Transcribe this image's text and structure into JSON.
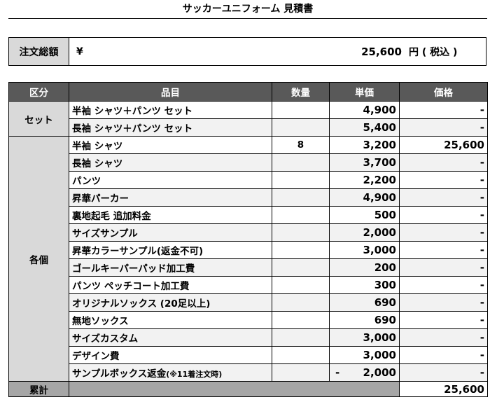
{
  "title": "サッカーユニフォーム 見積書",
  "total": {
    "label": "注文総額",
    "currency": "¥",
    "amount": "25,600",
    "unit": "円 ( 税込 )"
  },
  "table": {
    "headers": [
      "区分",
      "品目",
      "数量",
      "単価",
      "価格"
    ],
    "groups": [
      {
        "category": "セット",
        "rows": [
          {
            "item": "半袖 シャツ＋パンツ セット",
            "qty": "",
            "unit": "4,900",
            "amount": "-"
          },
          {
            "item": "長袖 シャツ＋パンツ セット",
            "qty": "",
            "unit": "5,400",
            "amount": "-"
          }
        ]
      },
      {
        "category": "各個",
        "rows": [
          {
            "item": "半袖 シャツ",
            "qty": "8",
            "unit": "3,200",
            "amount": "25,600"
          },
          {
            "item": "長袖 シャツ",
            "qty": "",
            "unit": "3,700",
            "amount": "-"
          },
          {
            "item": "パンツ",
            "qty": "",
            "unit": "2,200",
            "amount": "-"
          },
          {
            "item": "昇華パーカー",
            "qty": "",
            "unit": "4,900",
            "amount": "-"
          },
          {
            "item": "裏地起毛 追加料金",
            "qty": "",
            "unit": "500",
            "amount": "-"
          },
          {
            "item": "サイズサンプル",
            "qty": "",
            "unit": "2,000",
            "amount": "-"
          },
          {
            "item": "昇華カラーサンプル(返金不可)",
            "qty": "",
            "unit": "3,000",
            "amount": "-"
          },
          {
            "item": "ゴールキーパーパッド加工費",
            "qty": "",
            "unit": "200",
            "amount": "-"
          },
          {
            "item": "パンツ ペッチコート加工費",
            "qty": "",
            "unit": "300",
            "amount": "-"
          },
          {
            "item": "オリジナルソックス (20足以上)",
            "qty": "",
            "unit": "690",
            "amount": "-"
          },
          {
            "item": "無地ソックス",
            "qty": "",
            "unit": "690",
            "amount": "-"
          },
          {
            "item": "サイズカスタム",
            "qty": "",
            "unit": "3,000",
            "amount": "-"
          },
          {
            "item": "デザイン費",
            "qty": "",
            "unit": "3,000",
            "amount": "-"
          }
        ],
        "last_row": {
          "item": "サンプルボックス返金",
          "item_note": "(※11着注文時)",
          "qty": "",
          "unit_sign": "-",
          "unit": "2,000",
          "amount": "-"
        }
      }
    ],
    "summary": {
      "label": "累計",
      "amount": "25,600"
    }
  }
}
